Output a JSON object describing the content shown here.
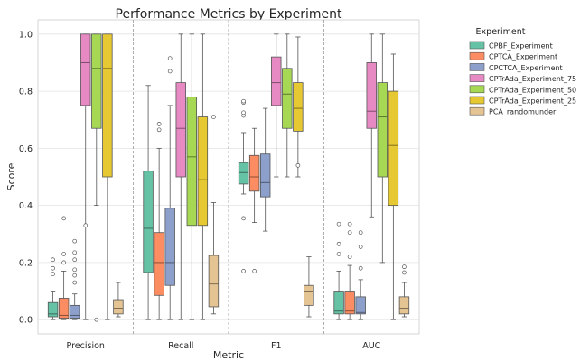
{
  "chart_data": {
    "type": "box",
    "title": "Performance Metrics by Experiment",
    "xlabel": "Metric",
    "ylabel": "Score",
    "ylim": [
      -0.05,
      1.05
    ],
    "yticks": [
      0.0,
      0.2,
      0.4,
      0.6,
      0.8,
      1.0
    ],
    "ytick_labels": [
      "0.0",
      "0.2",
      "0.4",
      "0.6",
      "0.8",
      "1.0"
    ],
    "grid": true,
    "legend_position": "outside-right",
    "legend_title": "Experiment",
    "categories": [
      "Precision",
      "Recall",
      "F1",
      "AUC"
    ],
    "series": [
      {
        "name": "CPBF_Experiment",
        "color": "#66c2a5",
        "boxes": [
          {
            "whislo": 0.0,
            "q1": 0.01,
            "med": 0.02,
            "q3": 0.06,
            "whishi": 0.1,
            "fliers": [
              0.16,
              0.18,
              0.21
            ]
          },
          {
            "whislo": 0.0,
            "q1": 0.165,
            "med": 0.32,
            "q3": 0.52,
            "whishi": 0.82,
            "fliers": []
          },
          {
            "whislo": 0.44,
            "q1": 0.475,
            "med": 0.515,
            "q3": 0.55,
            "whishi": 0.655,
            "fliers": [
              0.17,
              0.355,
              0.715,
              0.725,
              0.76,
              0.765
            ]
          },
          {
            "whislo": 0.0,
            "q1": 0.02,
            "med": 0.03,
            "q3": 0.1,
            "whishi": 0.17,
            "fliers": [
              0.23,
              0.265,
              0.335
            ]
          }
        ]
      },
      {
        "name": "CPTCA_Experiment",
        "color": "#fc8d62",
        "boxes": [
          {
            "whislo": 0.0,
            "q1": 0.005,
            "med": 0.015,
            "q3": 0.075,
            "whishi": 0.17,
            "fliers": [
              0.2,
              0.23,
              0.355
            ]
          },
          {
            "whislo": 0.0,
            "q1": 0.085,
            "med": 0.2,
            "q3": 0.305,
            "whishi": 0.6,
            "fliers": [
              0.665,
              0.685
            ]
          },
          {
            "whislo": 0.34,
            "q1": 0.45,
            "med": 0.5,
            "q3": 0.575,
            "whishi": 0.67,
            "fliers": [
              0.17
            ]
          },
          {
            "whislo": 0.0,
            "q1": 0.02,
            "med": 0.03,
            "q3": 0.1,
            "whishi": 0.19,
            "fliers": [
              0.22,
              0.305,
              0.335
            ]
          }
        ]
      },
      {
        "name": "CPCTCA_Experiment",
        "color": "#8da0cb",
        "boxes": [
          {
            "whislo": 0.0,
            "q1": 0.005,
            "med": 0.015,
            "q3": 0.05,
            "whishi": 0.09,
            "fliers": [
              0.13,
              0.155,
              0.175,
              0.21,
              0.235,
              0.275
            ]
          },
          {
            "whislo": 0.0,
            "q1": 0.12,
            "med": 0.2,
            "q3": 0.39,
            "whishi": 0.75,
            "fliers": [
              0.87,
              0.915
            ]
          },
          {
            "whislo": 0.31,
            "q1": 0.43,
            "med": 0.48,
            "q3": 0.58,
            "whishi": 0.74,
            "fliers": []
          },
          {
            "whislo": 0.0,
            "q1": 0.02,
            "med": 0.025,
            "q3": 0.08,
            "whishi": 0.14,
            "fliers": [
              0.18,
              0.255,
              0.305
            ]
          }
        ]
      },
      {
        "name": "CPTrAda_Experiment_75",
        "color": "#e78ac3",
        "boxes": [
          {
            "whislo": 0.0,
            "q1": 0.75,
            "med": 0.9,
            "q3": 1.0,
            "whishi": 1.0,
            "fliers": [
              0.33
            ]
          },
          {
            "whislo": 0.0,
            "q1": 0.5,
            "med": 0.67,
            "q3": 0.83,
            "whishi": 1.0,
            "fliers": []
          },
          {
            "whislo": 0.5,
            "q1": 0.75,
            "med": 0.83,
            "q3": 0.92,
            "whishi": 1.0,
            "fliers": []
          },
          {
            "whislo": 0.36,
            "q1": 0.67,
            "med": 0.73,
            "q3": 0.9,
            "whishi": 1.0,
            "fliers": []
          }
        ]
      },
      {
        "name": "CPTrAda_Experiment_50",
        "color": "#a6d854",
        "boxes": [
          {
            "whislo": 0.4,
            "q1": 0.67,
            "med": 0.88,
            "q3": 1.0,
            "whishi": 1.0,
            "fliers": [
              0.0
            ]
          },
          {
            "whislo": 0.0,
            "q1": 0.33,
            "med": 0.57,
            "q3": 0.78,
            "whishi": 1.0,
            "fliers": []
          },
          {
            "whislo": 0.5,
            "q1": 0.67,
            "med": 0.79,
            "q3": 0.88,
            "whishi": 1.0,
            "fliers": []
          },
          {
            "whislo": 0.2,
            "q1": 0.5,
            "med": 0.71,
            "q3": 0.83,
            "whishi": 1.0,
            "fliers": []
          }
        ]
      },
      {
        "name": "CPTrAda_Experiment_25",
        "color": "#e6c832",
        "boxes": [
          {
            "whislo": 0.0,
            "q1": 0.5,
            "med": 0.88,
            "q3": 1.0,
            "whishi": 1.0,
            "fliers": []
          },
          {
            "whislo": 0.0,
            "q1": 0.33,
            "med": 0.49,
            "q3": 0.71,
            "whishi": 1.0,
            "fliers": []
          },
          {
            "whislo": 0.5,
            "q1": 0.66,
            "med": 0.74,
            "q3": 0.83,
            "whishi": 0.99,
            "fliers": [
              0.54
            ]
          },
          {
            "whislo": 0.0,
            "q1": 0.4,
            "med": 0.61,
            "q3": 0.8,
            "whishi": 0.93,
            "fliers": []
          }
        ]
      },
      {
        "name": "PCA_randomunder",
        "color": "#e5c494",
        "boxes": [
          {
            "whislo": 0.01,
            "q1": 0.02,
            "med": 0.04,
            "q3": 0.07,
            "whishi": 0.13,
            "fliers": []
          },
          {
            "whislo": 0.02,
            "q1": 0.045,
            "med": 0.125,
            "q3": 0.225,
            "whishi": 0.41,
            "fliers": [
              0.71
            ]
          },
          {
            "whislo": 0.01,
            "q1": 0.05,
            "med": 0.1,
            "q3": 0.12,
            "whishi": 0.22,
            "fliers": []
          },
          {
            "whislo": 0.01,
            "q1": 0.02,
            "med": 0.04,
            "q3": 0.08,
            "whishi": 0.13,
            "fliers": [
              0.165,
              0.185
            ]
          }
        ]
      }
    ]
  }
}
